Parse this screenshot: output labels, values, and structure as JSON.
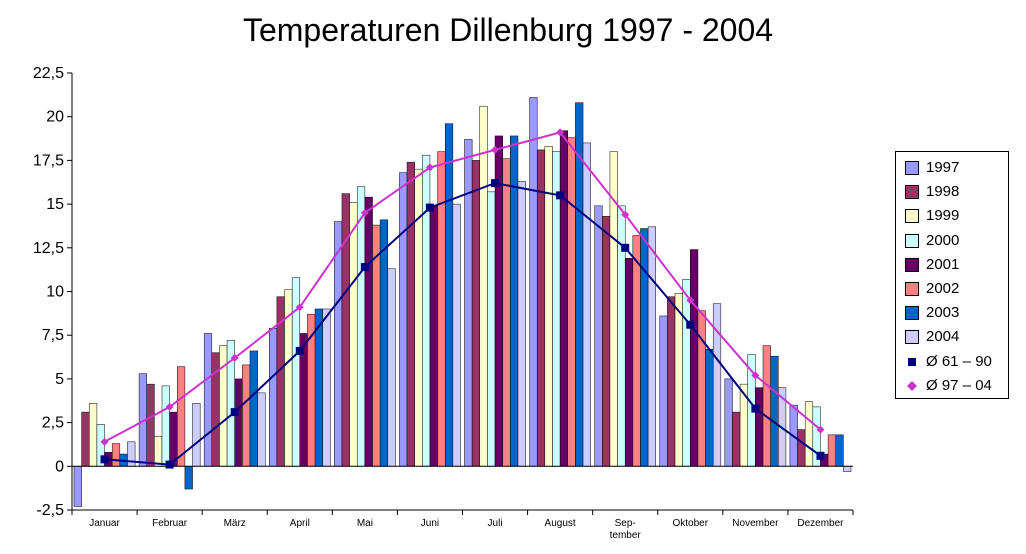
{
  "chart_data": {
    "type": "bar",
    "title": "Temperaturen Dillenburg 1997 - 2004",
    "xlabel": "",
    "ylabel": "",
    "ylim": [
      -2.5,
      22.5
    ],
    "yticks": [
      "22,5",
      "20",
      "17,5",
      "15",
      "12,5",
      "10",
      "7,5",
      "5",
      "2,5",
      "0",
      "-2,5"
    ],
    "ytick_values": [
      22.5,
      20,
      17.5,
      15,
      12.5,
      10,
      7.5,
      5,
      2.5,
      0,
      -2.5
    ],
    "categories": [
      "Januar",
      "Februar",
      "März",
      "April",
      "Mai",
      "Juni",
      "Juli",
      "August",
      "Sep-\ntember",
      "Oktober",
      "November",
      "Dezember"
    ],
    "series": [
      {
        "name": "1997",
        "color": "#9999ff",
        "values": [
          -2.3,
          5.3,
          7.6,
          7.9,
          14.0,
          16.8,
          18.7,
          21.1,
          14.9,
          8.6,
          5.0,
          3.5
        ]
      },
      {
        "name": "1998",
        "color": "#993366",
        "values": [
          3.1,
          4.7,
          6.5,
          9.7,
          15.6,
          17.4,
          17.5,
          18.1,
          14.3,
          9.7,
          3.1,
          2.1
        ]
      },
      {
        "name": "1999",
        "color": "#ffffcc",
        "values": [
          3.6,
          1.7,
          6.9,
          10.1,
          15.1,
          17.0,
          20.6,
          18.3,
          18.0,
          9.9,
          4.7,
          3.7
        ]
      },
      {
        "name": "2000",
        "color": "#ccffff",
        "values": [
          2.4,
          4.6,
          7.2,
          10.8,
          16.0,
          17.8,
          15.7,
          18.0,
          14.9,
          10.7,
          6.4,
          3.4
        ]
      },
      {
        "name": "2001",
        "color": "#660066",
        "values": [
          0.8,
          3.1,
          5.0,
          7.6,
          15.4,
          14.9,
          18.9,
          19.2,
          11.9,
          12.4,
          4.5,
          0.7
        ]
      },
      {
        "name": "2002",
        "color": "#ff8080",
        "values": [
          1.3,
          5.7,
          5.8,
          8.7,
          13.8,
          18.0,
          17.6,
          18.8,
          13.2,
          8.9,
          6.9,
          1.8
        ]
      },
      {
        "name": "2003",
        "color": "#0066cc",
        "values": [
          0.7,
          -1.3,
          6.6,
          9.0,
          14.1,
          19.6,
          18.9,
          20.8,
          13.6,
          6.7,
          6.3,
          1.8
        ]
      },
      {
        "name": "2004",
        "color": "#ccccff",
        "values": [
          1.4,
          3.6,
          4.2,
          9.0,
          11.3,
          15.0,
          16.3,
          18.5,
          13.7,
          9.3,
          4.5,
          -0.3
        ]
      }
    ],
    "lines": [
      {
        "name": "Ø 61 – 90",
        "color": "#000080",
        "marker": "square",
        "values": [
          0.4,
          0.1,
          3.1,
          6.6,
          11.4,
          14.8,
          16.2,
          15.5,
          12.5,
          8.1,
          3.3,
          0.6
        ]
      },
      {
        "name": "Ø 97 – 04",
        "color": "#cc33cc",
        "marker": "diamond",
        "values": [
          1.4,
          3.4,
          6.2,
          9.1,
          14.5,
          17.1,
          18.1,
          19.1,
          14.4,
          9.5,
          5.2,
          2.1
        ]
      }
    ],
    "legend_position": "right",
    "grid": false
  }
}
